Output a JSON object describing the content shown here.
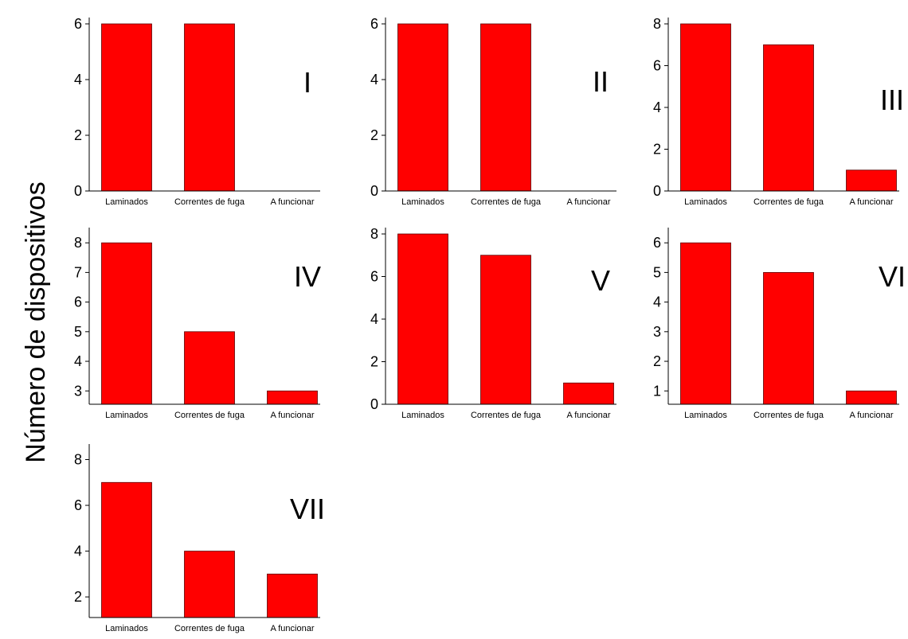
{
  "ylabel": "Número de dispositivos",
  "bar_color": "#ff0000",
  "chart_data": [
    {
      "type": "bar",
      "panel_label": "I",
      "categories": [
        "Laminados",
        "Correntes de fuga",
        "A funcionar"
      ],
      "values": [
        6,
        6,
        0
      ],
      "ylim": [
        0,
        6
      ],
      "yticks": [
        0,
        2,
        4,
        6
      ],
      "ylabel": "Número de dispositivos"
    },
    {
      "type": "bar",
      "panel_label": "II",
      "categories": [
        "Laminados",
        "Correntes de fuga",
        "A funcionar"
      ],
      "values": [
        6,
        6,
        0
      ],
      "ylim": [
        0,
        6
      ],
      "yticks": [
        0,
        2,
        4,
        6
      ],
      "ylabel": "Número de dispositivos"
    },
    {
      "type": "bar",
      "panel_label": "III",
      "categories": [
        "Laminados",
        "Correntes de fuga",
        "A funcionar"
      ],
      "values": [
        8,
        7,
        1
      ],
      "ylim": [
        0,
        8
      ],
      "yticks": [
        0,
        2,
        4,
        6,
        8
      ],
      "ylabel": "Número de dispositivos"
    },
    {
      "type": "bar",
      "panel_label": "IV",
      "categories": [
        "Laminados",
        "Correntes de fuga",
        "A funcionar"
      ],
      "values": [
        8,
        5,
        3
      ],
      "ylim": [
        2.55,
        8.3
      ],
      "yticks": [
        3,
        4,
        5,
        6,
        7,
        8
      ],
      "ylabel": "Número de dispositivos"
    },
    {
      "type": "bar",
      "panel_label": "V",
      "categories": [
        "Laminados",
        "Correntes de fuga",
        "A funcionar"
      ],
      "values": [
        8,
        7,
        1
      ],
      "ylim": [
        0,
        8
      ],
      "yticks": [
        0,
        2,
        4,
        6,
        8
      ],
      "ylabel": "Número de dispositivos"
    },
    {
      "type": "bar",
      "panel_label": "VI",
      "categories": [
        "Laminados",
        "Correntes de fuga",
        "A funcionar"
      ],
      "values": [
        6,
        5,
        1
      ],
      "ylim": [
        0.55,
        6.3
      ],
      "yticks": [
        1,
        2,
        3,
        4,
        5,
        6
      ],
      "ylabel": "Número de dispositivos"
    },
    {
      "type": "bar",
      "panel_label": "VII",
      "categories": [
        "Laminados",
        "Correntes de fuga",
        "A funcionar"
      ],
      "values": [
        7,
        4,
        3
      ],
      "ylim": [
        1.1,
        8.4
      ],
      "yticks": [
        2,
        4,
        6,
        8
      ],
      "ylabel": "Número de dispositivos"
    }
  ]
}
